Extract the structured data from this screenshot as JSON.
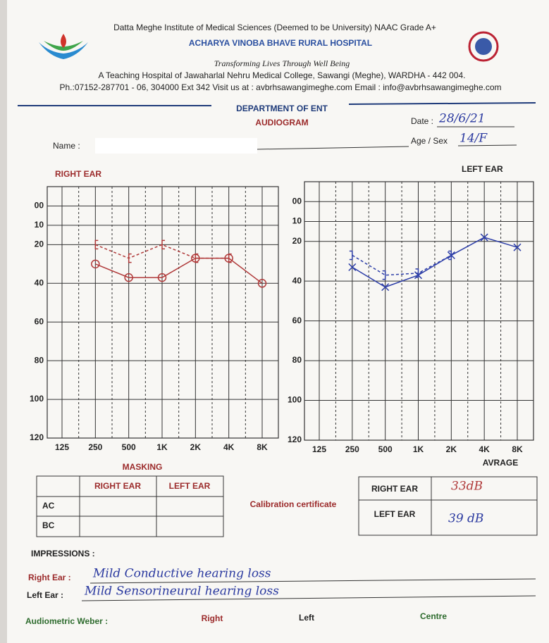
{
  "header": {
    "institute": "Datta Meghe Institute of Medical Sciences (Deemed to be University) NAAC Grade A+",
    "hospital": "ACHARYA VINOBA BHAVE RURAL HOSPITAL",
    "tagline": "Transforming Lives Through Well Being",
    "address": "A Teaching Hospital of Jawaharlal Nehru Medical College, Sawangi (Meghe), WARDHA - 442 004.",
    "contact": "Ph.:07152-287701 - 06, 304000 Ext 342 Visit us at : avbrhsawangimeghe.com Email : info@avbrhsawangimeghe.com"
  },
  "department": "DEPARTMENT OF ENT",
  "form_title": "AUDIOGRAM",
  "fields": {
    "date_label": "Date :",
    "date": "28/6/21",
    "name_label": "Name :",
    "age_sex_label": "Age / Sex",
    "age_sex": "14/F"
  },
  "audiograms": [
    {
      "type": "line",
      "title": "RIGHT EAR",
      "x": [
        "125",
        "250",
        "500",
        "1K",
        "2K",
        "4K",
        "8K"
      ],
      "ylim": [
        -10,
        120
      ],
      "yticks": [
        {
          "value": 0,
          "label": "00"
        },
        10,
        20,
        40,
        60,
        80,
        100,
        120
      ],
      "series": [
        {
          "color": "#b03a3a",
          "marker": "circle",
          "dashed": false,
          "values": [
            null,
            30,
            37,
            37,
            27,
            27,
            40
          ]
        },
        {
          "color": "#b03a3a",
          "marker": "bracket-left",
          "dashed": true,
          "values": [
            null,
            20,
            27,
            20,
            27,
            27,
            null
          ]
        }
      ]
    },
    {
      "type": "line",
      "title": "LEFT EAR",
      "x": [
        "125",
        "250",
        "500",
        "1K",
        "2K",
        "4K",
        "8K"
      ],
      "ylim": [
        -10,
        120
      ],
      "yticks": [
        {
          "value": 0,
          "label": "00"
        },
        10,
        20,
        40,
        60,
        80,
        100,
        120
      ],
      "series": [
        {
          "color": "#2e3fa8",
          "marker": "cross",
          "dashed": false,
          "values": [
            null,
            33,
            43,
            37,
            27,
            18,
            23
          ]
        },
        {
          "color": "#2e3fa8",
          "marker": "bracket-right",
          "dashed": true,
          "values": [
            null,
            27,
            37,
            36,
            27,
            null,
            null
          ]
        }
      ]
    }
  ],
  "masking": {
    "title": "MASKING",
    "columns": [
      "RIGHT EAR",
      "LEFT EAR"
    ],
    "rows": [
      "AC",
      "BC"
    ]
  },
  "calibration": "Calibration certificate",
  "average": {
    "title": "AVRAGE",
    "rows": [
      [
        "RIGHT EAR",
        "33dB"
      ],
      [
        "LEFT EAR",
        "39 dB"
      ]
    ]
  },
  "impressions": {
    "title": "IMPRESSIONS :",
    "right_label": "Right Ear :",
    "right": "Mild Conductive hearing loss",
    "left_label": "Left Ear :",
    "left": "Mild Sensorineural hearing loss"
  },
  "weber": {
    "label": "Audiometric Weber :",
    "options": [
      "Right",
      "Left",
      "Centre"
    ]
  }
}
